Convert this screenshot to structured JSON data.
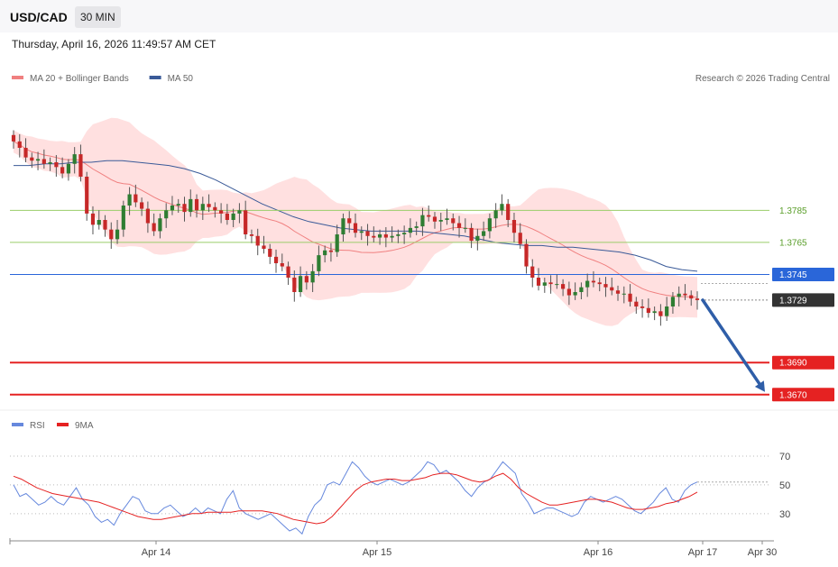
{
  "header": {
    "symbol": "USD/CAD",
    "timeframe": "30 MIN"
  },
  "timestamp": "Thursday, April 16, 2026 11:49:57 AM CET",
  "credit": "Research © 2026 Trading Central",
  "colors": {
    "up_candle": "#2e7d32",
    "down_candle": "#c62828",
    "ma20": "#f08080",
    "bands_fill": "#ffd6d6",
    "ma50": "#3a5a98",
    "resistance": "#9acd6a",
    "pivot": "#2a66d9",
    "support": "#e52222",
    "arrow": "#2f5ea8",
    "rsi": "#6688dd",
    "rsi_ma": "#e52222",
    "current": "#333333"
  },
  "chart_data": [
    {
      "type": "candlestick",
      "title": "",
      "legend": [
        {
          "name": "MA 20 + Bollinger Bands",
          "color": "#f08080"
        },
        {
          "name": "MA 50",
          "color": "#3a5a98"
        }
      ],
      "legend_position": "top-left",
      "x_ticks": [
        "Apr 14",
        "Apr 15",
        "Apr 16",
        "Apr 17",
        "Apr 30"
      ],
      "ylim": [
        1.3662,
        1.386
      ],
      "levels": [
        {
          "label": "1.3785",
          "value": 1.3785,
          "kind": "resistance"
        },
        {
          "label": "1.3765",
          "value": 1.3765,
          "kind": "resistance"
        },
        {
          "label": "1.3745",
          "value": 1.3745,
          "kind": "pivot"
        },
        {
          "label": "1.3729",
          "value": 1.3729,
          "kind": "current"
        },
        {
          "label": "1.3690",
          "value": 1.369,
          "kind": "support"
        },
        {
          "label": "1.3670",
          "value": 1.367,
          "kind": "support"
        }
      ],
      "close_series": [
        1.3828,
        1.3824,
        1.3818,
        1.3816,
        1.3817,
        1.3814,
        1.3815,
        1.3812,
        1.3808,
        1.3814,
        1.382,
        1.3806,
        1.3783,
        1.3776,
        1.3779,
        1.3773,
        1.3767,
        1.3773,
        1.3788,
        1.3795,
        1.379,
        1.3786,
        1.3777,
        1.3772,
        1.378,
        1.3785,
        1.3788,
        1.3789,
        1.3784,
        1.3792,
        1.3785,
        1.3789,
        1.3787,
        1.3785,
        1.3783,
        1.3779,
        1.3783,
        1.3785,
        1.377,
        1.3769,
        1.3763,
        1.3761,
        1.3756,
        1.3752,
        1.375,
        1.3743,
        1.3734,
        1.3744,
        1.374,
        1.3747,
        1.3757,
        1.376,
        1.3759,
        1.377,
        1.378,
        1.3777,
        1.3771,
        1.3772,
        1.3769,
        1.3768,
        1.377,
        1.3768,
        1.3769,
        1.377,
        1.3771,
        1.3774,
        1.3775,
        1.3782,
        1.3781,
        1.3778,
        1.3779,
        1.378,
        1.3777,
        1.3774,
        1.3774,
        1.3766,
        1.3769,
        1.3772,
        1.378,
        1.3785,
        1.3789,
        1.3779,
        1.3771,
        1.3764,
        1.375,
        1.3743,
        1.3738,
        1.374,
        1.3739,
        1.3739,
        1.3736,
        1.3732,
        1.3734,
        1.3737,
        1.3741,
        1.374,
        1.3739,
        1.3737,
        1.3735,
        1.3733,
        1.3733,
        1.3728,
        1.3725,
        1.3724,
        1.3721,
        1.3722,
        1.3719,
        1.3725,
        1.3731,
        1.3733,
        1.3732,
        1.373,
        1.3729
      ],
      "ma50_series": [
        1.3813,
        1.3813,
        1.3814,
        1.3814,
        1.3815,
        1.3815,
        1.3816,
        1.3816,
        1.3815,
        1.3814,
        1.3813,
        1.3811,
        1.3808,
        1.3804,
        1.3799,
        1.3794,
        1.3789,
        1.3785,
        1.3781,
        1.3778,
        1.3776,
        1.3774,
        1.3773,
        1.3772,
        1.3772,
        1.3772,
        1.3772,
        1.3771,
        1.377,
        1.3769,
        1.3767,
        1.3765,
        1.3764,
        1.3763,
        1.3763,
        1.3762,
        1.3762,
        1.3761,
        1.376,
        1.3759,
        1.3757,
        1.3754,
        1.375,
        1.3748,
        1.3747
      ],
      "ma50_start_index": 0,
      "forecast_arrow": {
        "from": 1.3729,
        "to": 1.367
      }
    },
    {
      "type": "line",
      "title": "",
      "legend": [
        {
          "name": "RSI",
          "color": "#6688dd"
        },
        {
          "name": "9MA",
          "color": "#e52222"
        }
      ],
      "y_ticks": [
        "70",
        "50",
        "30"
      ],
      "ylim": [
        13,
        85
      ],
      "rsi_series": [
        50,
        42,
        44,
        40,
        36,
        38,
        42,
        38,
        36,
        42,
        48,
        40,
        36,
        28,
        24,
        26,
        22,
        30,
        36,
        42,
        40,
        32,
        30,
        30,
        34,
        36,
        32,
        28,
        30,
        34,
        30,
        34,
        32,
        30,
        40,
        46,
        34,
        30,
        28,
        26,
        28,
        30,
        26,
        22,
        18,
        20,
        16,
        28,
        36,
        40,
        50,
        52,
        50,
        58,
        66,
        62,
        56,
        52,
        50,
        52,
        54,
        52,
        50,
        52,
        56,
        60,
        66,
        64,
        58,
        60,
        56,
        52,
        46,
        42,
        48,
        52,
        54,
        60,
        66,
        62,
        58,
        44,
        38,
        30,
        32,
        34,
        34,
        32,
        30,
        28,
        30,
        38,
        42,
        40,
        38,
        40,
        42,
        40,
        36,
        32,
        30,
        34,
        38,
        44,
        48,
        40,
        38,
        46,
        50,
        52
      ],
      "rsi_ma_series": [
        56,
        54,
        51,
        48,
        46,
        44,
        43,
        42,
        41,
        40,
        39,
        38,
        36,
        34,
        32,
        30,
        28,
        27,
        26,
        26,
        27,
        28,
        29,
        30,
        30,
        31,
        31,
        31,
        31,
        32,
        32,
        32,
        32,
        31,
        30,
        28,
        26,
        25,
        24,
        23,
        24,
        28,
        34,
        40,
        46,
        50,
        52,
        53,
        54,
        54,
        53,
        53,
        54,
        55,
        57,
        58,
        58,
        57,
        55,
        53,
        52,
        53,
        56,
        58,
        54,
        48,
        44,
        41,
        38,
        36,
        36,
        37,
        38,
        39,
        40,
        40,
        39,
        38,
        36,
        34,
        33,
        33,
        34,
        35,
        37,
        38,
        40,
        42,
        45
      ]
    }
  ]
}
